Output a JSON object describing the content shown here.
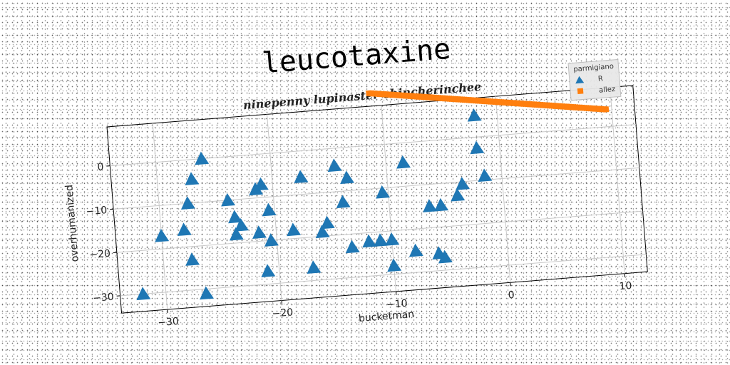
{
  "chart_data": {
    "type": "scatter",
    "title": "leucotaxine",
    "subtitle": "ninepenny lupinaster chincherinchee",
    "xlabel": "bucketman",
    "ylabel": "overhumanized",
    "xlim": [
      -34,
      12
    ],
    "ylim": [
      -34,
      9
    ],
    "xticks": [
      -30,
      -20,
      -10,
      0,
      10
    ],
    "yticks": [
      -30,
      -20,
      -10,
      0
    ],
    "xtick_labels": [
      "−30",
      "−20",
      "−10",
      "0",
      "10"
    ],
    "ytick_labels": [
      "−30",
      "−20",
      "−10",
      "0"
    ],
    "grid": true,
    "legend": {
      "title": "parmigiano",
      "position": "top-right"
    },
    "series": [
      {
        "name": "R",
        "marker": "triangle",
        "color": "#1f77b4",
        "points": [
          [
            -32,
            -30
          ],
          [
            -30,
            -17
          ],
          [
            -28,
            -16
          ],
          [
            -27.5,
            -10
          ],
          [
            -27,
            -4.5
          ],
          [
            -26,
            0
          ],
          [
            -27.5,
            -23
          ],
          [
            -26.5,
            -31
          ],
          [
            -24,
            -10
          ],
          [
            -23.5,
            -14
          ],
          [
            -23.5,
            -18
          ],
          [
            -23,
            -16
          ],
          [
            -21.5,
            -8
          ],
          [
            -21,
            -7
          ],
          [
            -20.5,
            -13
          ],
          [
            -21.5,
            -18
          ],
          [
            -20.5,
            -20
          ],
          [
            -21,
            -27
          ],
          [
            -18.5,
            -18
          ],
          [
            -17.5,
            -6
          ],
          [
            -17,
            -27
          ],
          [
            -16,
            -19
          ],
          [
            -15.5,
            -17
          ],
          [
            -14.5,
            -4
          ],
          [
            -14,
            -12.5
          ],
          [
            -13.5,
            -7
          ],
          [
            -13.5,
            -23
          ],
          [
            -12,
            -22
          ],
          [
            -11,
            -22
          ],
          [
            -10.5,
            -11
          ],
          [
            -10,
            -28
          ],
          [
            -10,
            -22
          ],
          [
            -8.5,
            -4.5
          ],
          [
            -8,
            -25
          ],
          [
            -6.5,
            -15
          ],
          [
            -6,
            -26
          ],
          [
            -5.5,
            -27
          ],
          [
            -5.5,
            -15
          ],
          [
            -4,
            -13
          ],
          [
            -3.5,
            -10.5
          ],
          [
            -2,
            5
          ],
          [
            -2,
            -2.5
          ],
          [
            -1.5,
            -9
          ]
        ]
      },
      {
        "name": "allez",
        "marker": "square",
        "color": "#ff7f0e",
        "line_from": [
          -11,
          12
        ],
        "line_to": [
          9.5,
          4
        ],
        "count": 110
      }
    ]
  }
}
